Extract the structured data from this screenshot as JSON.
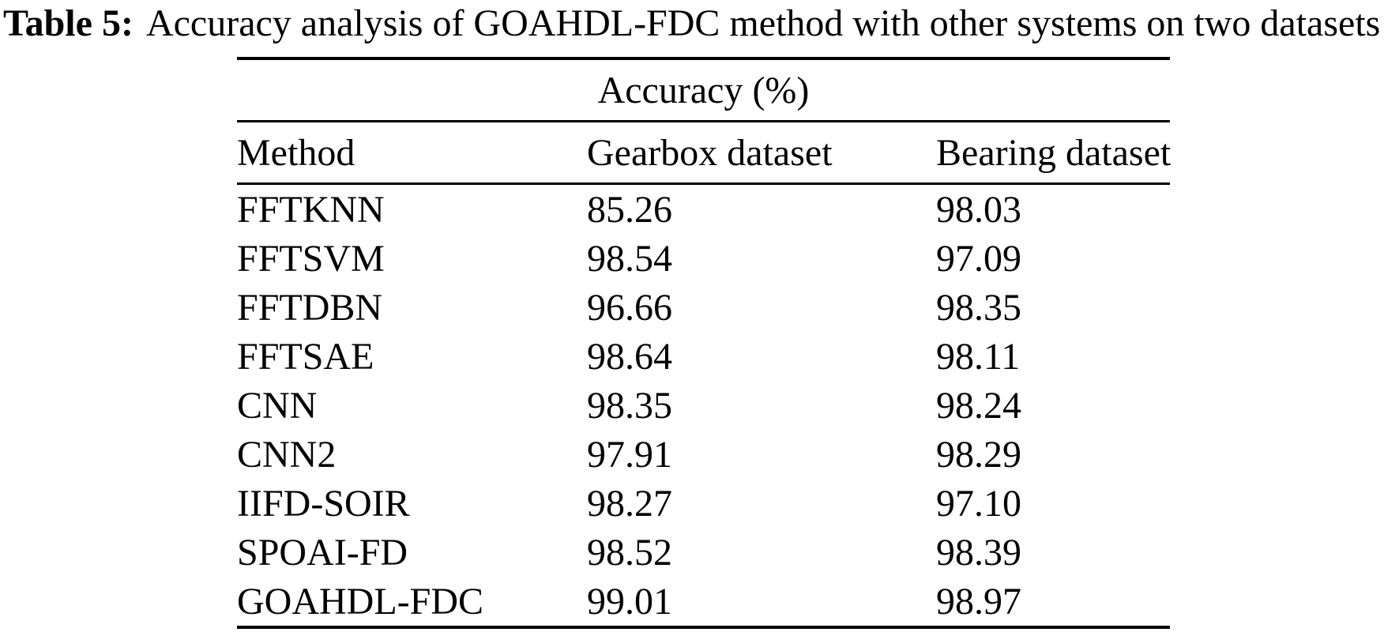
{
  "caption": {
    "label": "Table 5:",
    "text": "Accuracy analysis of GOAHDL-FDC method with other systems on two datasets"
  },
  "table": {
    "group_header": "Accuracy (%)",
    "columns": [
      "Method",
      "Gearbox dataset",
      "Bearing dataset"
    ],
    "rows": [
      {
        "method": "FFTKNN",
        "gearbox": "85.26",
        "bearing": "98.03"
      },
      {
        "method": "FFTSVM",
        "gearbox": "98.54",
        "bearing": "97.09"
      },
      {
        "method": "FFTDBN",
        "gearbox": "96.66",
        "bearing": "98.35"
      },
      {
        "method": "FFTSAE",
        "gearbox": "98.64",
        "bearing": "98.11"
      },
      {
        "method": "CNN",
        "gearbox": "98.35",
        "bearing": "98.24"
      },
      {
        "method": "CNN2",
        "gearbox": "97.91",
        "bearing": "98.29"
      },
      {
        "method": "IIFD-SOIR",
        "gearbox": "98.27",
        "bearing": "97.10"
      },
      {
        "method": "SPOAI-FD",
        "gearbox": "98.52",
        "bearing": "98.39"
      },
      {
        "method": "GOAHDL-FDC",
        "gearbox": "99.01",
        "bearing": "98.97"
      }
    ]
  },
  "chart_data": {
    "type": "table",
    "title": "Table 5: Accuracy analysis of GOAHDL-FDC method with other systems on two datasets",
    "group_header": "Accuracy (%)",
    "columns": [
      "Method",
      "Gearbox dataset",
      "Bearing dataset"
    ],
    "categories": [
      "FFTKNN",
      "FFTSVM",
      "FFTDBN",
      "FFTSAE",
      "CNN",
      "CNN2",
      "IIFD-SOIR",
      "SPOAI-FD",
      "GOAHDL-FDC"
    ],
    "series": [
      {
        "name": "Gearbox dataset",
        "values": [
          85.26,
          98.54,
          96.66,
          98.64,
          98.35,
          97.91,
          98.27,
          98.52,
          99.01
        ]
      },
      {
        "name": "Bearing dataset",
        "values": [
          98.03,
          97.09,
          98.35,
          98.11,
          98.24,
          98.29,
          97.1,
          98.39,
          98.97
        ]
      }
    ]
  },
  "colors": {
    "text": "#000000",
    "background": "#ffffff",
    "rule": "#000000"
  }
}
